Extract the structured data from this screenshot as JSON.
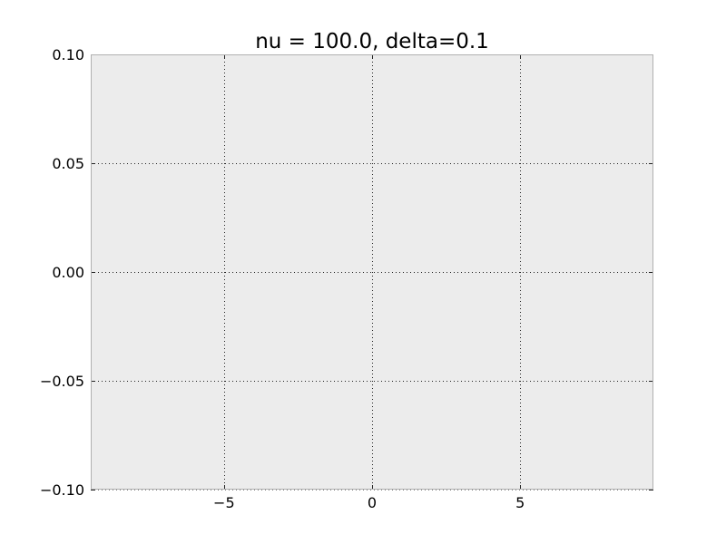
{
  "chart_data": {
    "type": "line",
    "title": "nu = 100.0, delta=0.1",
    "xlabel": "",
    "ylabel": "",
    "xlim": [
      -9.5,
      9.5
    ],
    "ylim": [
      -0.1,
      0.1
    ],
    "x_ticks": [
      {
        "value": -5,
        "label": "−5"
      },
      {
        "value": 0,
        "label": "0"
      },
      {
        "value": 5,
        "label": "5"
      }
    ],
    "y_ticks": [
      {
        "value": 0.1,
        "label": "0.10"
      },
      {
        "value": 0.05,
        "label": "0.05"
      },
      {
        "value": 0.0,
        "label": "0.00"
      },
      {
        "value": -0.05,
        "label": "−0.05"
      },
      {
        "value": -0.1,
        "label": "−0.10"
      }
    ],
    "grid": true,
    "series": [],
    "colors": {
      "plot_background": "#ececec",
      "axes_edge": "#b0b0b0",
      "grid": "#222222",
      "tick": "#222222"
    }
  }
}
